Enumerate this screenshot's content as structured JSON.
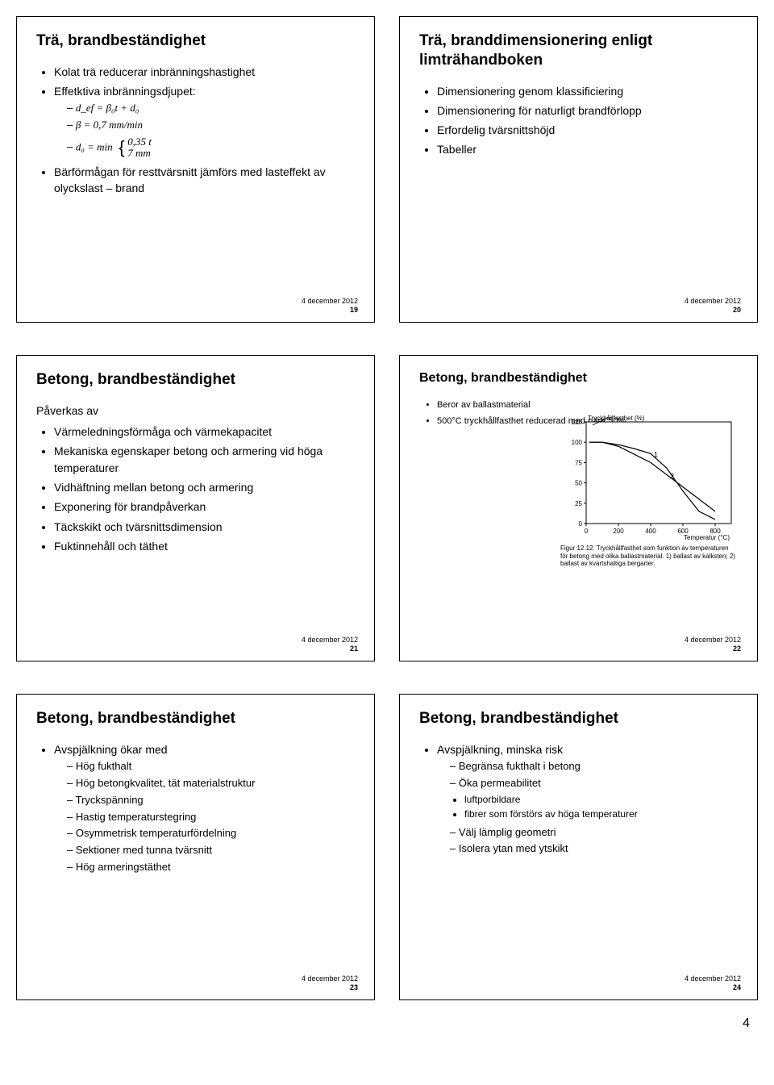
{
  "page_num": "4",
  "date_text": "4 december 2012",
  "slides": {
    "s19": {
      "num": "19",
      "title": "Trä, brandbeständighet",
      "b1": "Kolat trä reducerar inbränningshastighet",
      "b2": "Effetktiva inbränningsdjupet:",
      "eq1": "d_ef = β₀t + d₀",
      "eq2": "β = 0,7 mm/min",
      "eq3_pre": "d₀ = min",
      "eq3_a": "0,35 t",
      "eq3_b": "7 mm",
      "b3": "Bärförmågan för resttvärsnitt jämförs med lasteffekt av olyckslast – brand"
    },
    "s20": {
      "num": "20",
      "title": "Trä, branddimensionering enligt limträhandboken",
      "b1": "Dimensionering genom klassificiering",
      "b2": "Dimensionering för naturligt brandförlopp",
      "b3": "Erfordelig tvärsnittshöjd",
      "b4": "Tabeller"
    },
    "s21": {
      "num": "21",
      "title": "Betong, brandbeständighet",
      "intro": "Påverkas av",
      "b1": "Värmeledningsförmåga och värmekapacitet",
      "b2": "Mekaniska egenskaper betong och armering vid höga temperaturer",
      "b3": "Vidhäftning mellan betong och armering",
      "b4": "Exponering för brandpåverkan",
      "b5": "Täckskikt och tvärsnittsdimension",
      "b6": "Fuktinnehåll och täthet"
    },
    "s22": {
      "num": "22",
      "title": "Betong, brandbeständighet",
      "b1": "Beror av ballastmaterial",
      "b2": "500°C tryckhållfasthet reducerad med nära 50%",
      "chart": {
        "ylabel": "Tryckhållfasthet (%)",
        "xlabel": "Temperatur (°C)",
        "xlim": [
          0,
          900
        ],
        "ylim": [
          0,
          125
        ],
        "xticks": [
          0,
          200,
          400,
          600,
          800
        ],
        "yticks": [
          0,
          25,
          50,
          75,
          100,
          125
        ],
        "series1_x": [
          20,
          100,
          200,
          300,
          400,
          500,
          600,
          700,
          800
        ],
        "series1_y": [
          100,
          100,
          95,
          85,
          75,
          60,
          45,
          30,
          15
        ],
        "series2_x": [
          20,
          100,
          200,
          300,
          400,
          500,
          600,
          700,
          800
        ],
        "series2_y": [
          100,
          100,
          97,
          92,
          86,
          68,
          40,
          15,
          5
        ],
        "line1_label": "1",
        "line2_label": "2",
        "line_color": "#000000",
        "bg": "#ffffff",
        "caption": "Figur 12.12. Tryckhållfasthet som funktion av temperaturen för betong med olika ballastmaterial. 1) ballast av kalksten; 2) ballast av kvartshaltiga bergarter."
      }
    },
    "s23": {
      "num": "23",
      "title": "Betong, brandbeständighet",
      "b1": "Avspjälkning ökar med",
      "d1": "Hög fukthalt",
      "d2": "Hög betongkvalitet, tät materialstruktur",
      "d3": "Tryckspänning",
      "d4": "Hastig temperaturstegring",
      "d5": "Osymmetrisk temperaturfördelning",
      "d6": "Sektioner med tunna tvärsnitt",
      "d7": "Hög armeringstäthet"
    },
    "s24": {
      "num": "24",
      "title": "Betong, brandbeständighet",
      "b1": "Avspjälkning, minska risk",
      "d1": "Begränsa fukthalt i betong",
      "d2": "Öka permeabilitet",
      "dd1": "luftporbildare",
      "dd2": "fibrer som förstörs av höga temperaturer",
      "d3": "Välj lämplig geometri",
      "d4": "Isolera ytan med ytskikt"
    }
  }
}
